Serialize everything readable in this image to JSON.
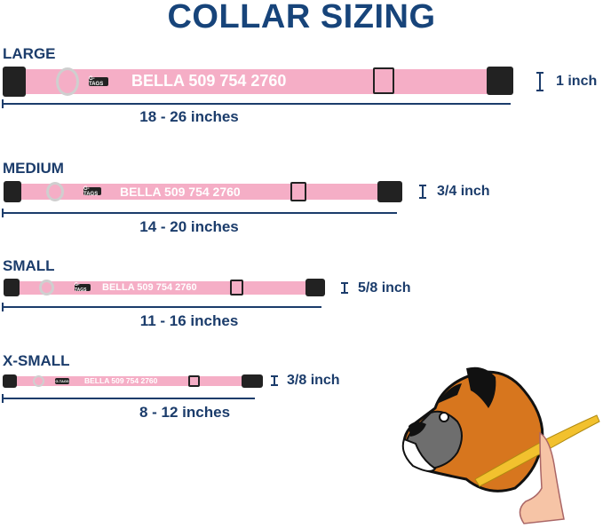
{
  "title": "COLLAR SIZING",
  "brand_label": "G-TAGS",
  "colors": {
    "navy": "#1b3c6b",
    "strap_pink": "#f5aec6",
    "hardware": "#222222"
  },
  "sizes": [
    {
      "label": "LARGE",
      "range": "18 - 26 inches",
      "width": "1 inch",
      "name_text": "BELLA 509 754 2760"
    },
    {
      "label": "MEDIUM",
      "range": "14 - 20 inches",
      "width": "3/4 inch",
      "name_text": "BELLA 509 754 2760"
    },
    {
      "label": "SMALL",
      "range": "11 - 16 inches",
      "width": "5/8 inch",
      "name_text": "BELLA 509 754 2760"
    },
    {
      "label": "X-SMALL",
      "range": "8 - 12 inches",
      "width": "3/8 inch",
      "name_text": "BELLA 509 754 2760"
    }
  ],
  "illustration": "boxer-dog-neck-measuring-tape"
}
